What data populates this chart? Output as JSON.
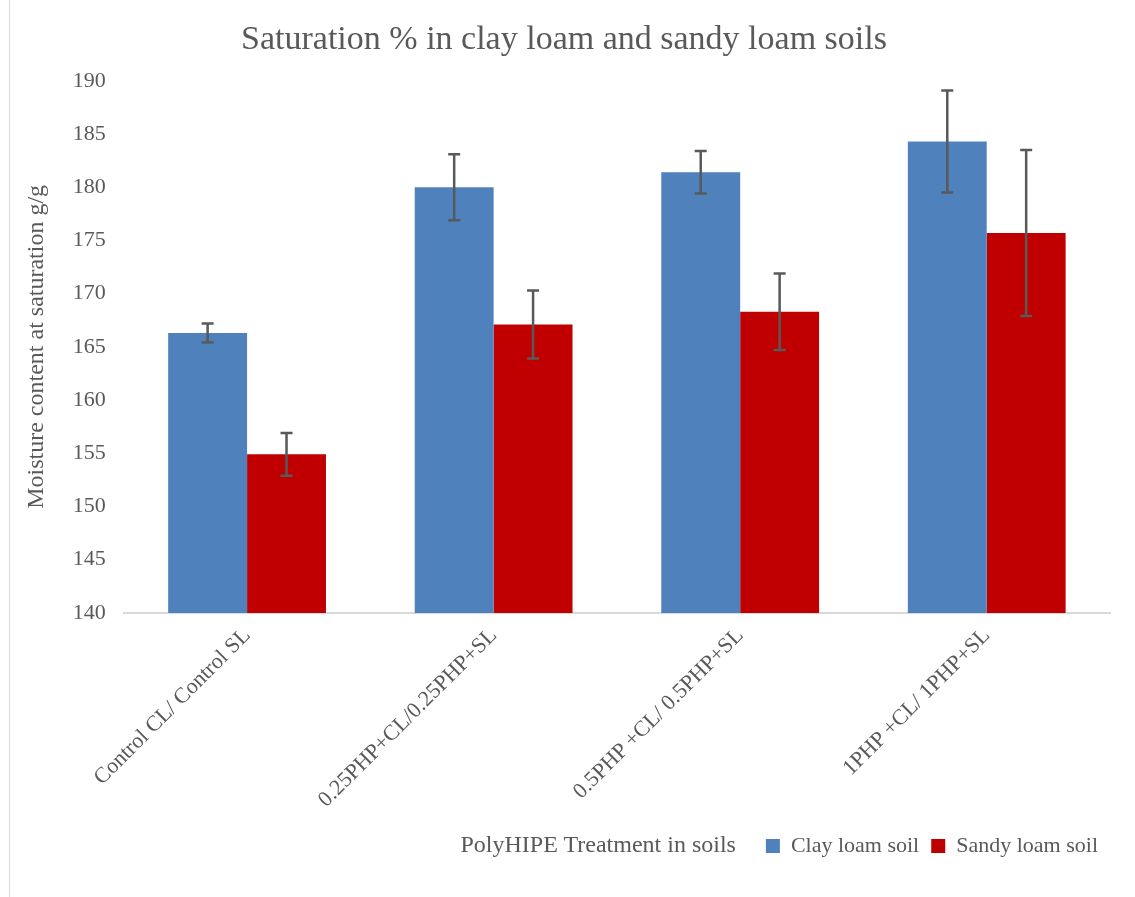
{
  "chart_data": {
    "type": "bar",
    "title": "Saturation % in clay loam and sandy loam soils",
    "xlabel": "PolyHIPE Treatment in soils",
    "ylabel": "Moisture content at saturation g/g",
    "categories": [
      "Control CL/ Control SL",
      "0.25PHP+CL/0.25PHP+SL",
      "0.5PHP +CL/ 0.5PHP+SL",
      "1PHP +CL/ 1PHP+SL"
    ],
    "series": [
      {
        "name": "Clay loam soil",
        "color": "#4f81bd",
        "values": [
          166.3,
          180.0,
          181.4,
          184.3
        ],
        "errors": [
          0.9,
          3.1,
          2.0,
          4.8
        ]
      },
      {
        "name": "Sandy loam soil",
        "color": "#c00000",
        "values": [
          154.9,
          167.1,
          168.3,
          175.7
        ],
        "errors": [
          2.0,
          3.2,
          3.6,
          7.8
        ]
      }
    ],
    "ylim": [
      140,
      190
    ],
    "yticks": [
      140,
      145,
      150,
      155,
      160,
      165,
      170,
      175,
      180,
      185,
      190
    ],
    "grid": false,
    "legend": "bottom"
  }
}
